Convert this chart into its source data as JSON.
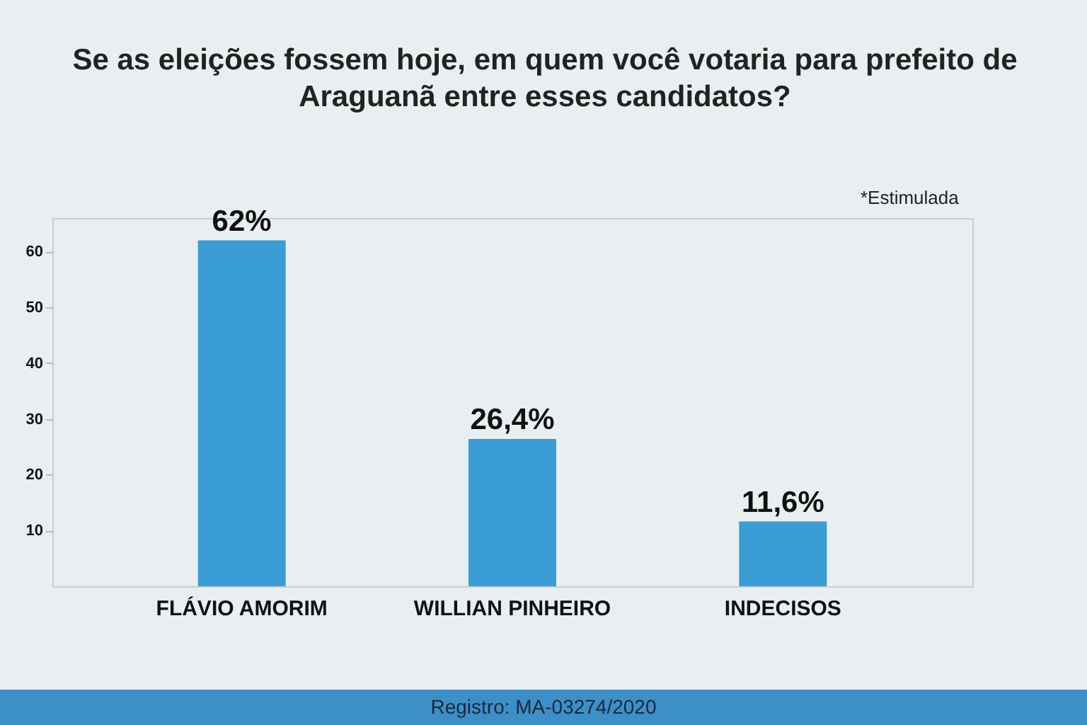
{
  "chart_data": {
    "type": "bar",
    "title": "Se as eleições fossem hoje, em quem você votaria para prefeito de Araguanã entre esses candidatos?",
    "categories": [
      "FLÁVIO AMORIM",
      "WILLIAN PINHEIRO",
      "INDECISOS"
    ],
    "values": [
      62,
      26.4,
      11.6
    ],
    "value_labels": [
      "62%",
      "26,4%",
      "11,6%"
    ],
    "color": "#3a9dd6",
    "ylim": [
      0,
      66
    ],
    "yticks": [
      10,
      20,
      30,
      40,
      50,
      60
    ],
    "grid": false,
    "annotations": [
      "*Estimulada",
      "Registro: MA-03274/2020"
    ]
  }
}
